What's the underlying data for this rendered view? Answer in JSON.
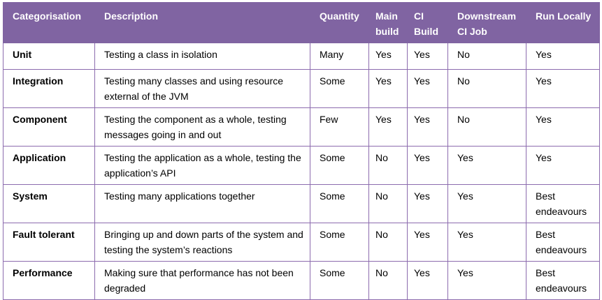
{
  "colors": {
    "header_bg": "#8064A2",
    "header_text": "#FFFFFF",
    "border": "#8C6BAE",
    "body_text": "#000000",
    "page_bg": "#FFFFFF"
  },
  "table": {
    "columns": [
      "Categorisation",
      "Description",
      "Quantity",
      "Main build",
      "CI Build",
      "Downstream CI Job",
      "Run Locally"
    ],
    "rows": [
      [
        "Unit",
        "Testing a class in isolation",
        "Many",
        "Yes",
        "Yes",
        "No",
        "Yes"
      ],
      [
        "Integration",
        "Testing many classes and using resource external of the JVM",
        "Some",
        "Yes",
        "Yes",
        "No",
        "Yes"
      ],
      [
        "Component",
        "Testing the component as a whole, testing messages going in and out",
        "Few",
        "Yes",
        "Yes",
        "No",
        "Yes"
      ],
      [
        "Application",
        "Testing the application as a whole, testing the application’s API",
        "Some",
        "No",
        "Yes",
        "Yes",
        "Yes"
      ],
      [
        "System",
        "Testing many applications together",
        "Some",
        "No",
        "Yes",
        "Yes",
        "Best endeavours"
      ],
      [
        "Fault tolerant",
        "Bringing up and down parts of the system and testing the system’s reactions",
        "Some",
        "No",
        "Yes",
        "Yes",
        "Best endeavours"
      ],
      [
        "Performance",
        "Making sure that performance has not been degraded",
        "Some",
        "No",
        "Yes",
        "Yes",
        "Best endeavours"
      ]
    ]
  }
}
